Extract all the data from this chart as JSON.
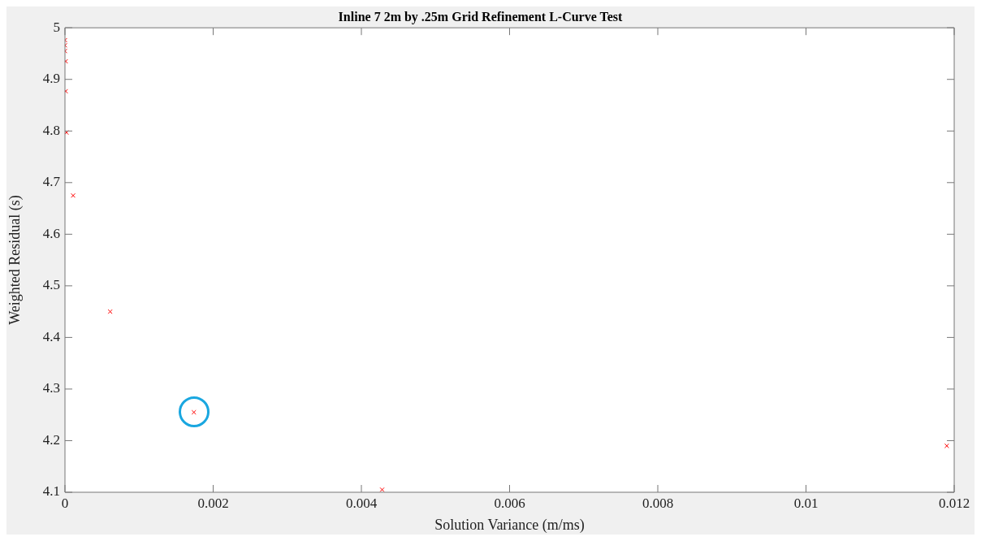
{
  "chart_data": {
    "type": "scatter",
    "title": "Inline 7 2m by .25m Grid Refinement L-Curve Test",
    "xlabel": "Solution Variance (m/ms)",
    "ylabel": "Weighted Residual (s)",
    "series": [
      {
        "color": "#ff0000",
        "x": [
          0,
          0,
          0,
          1e-05,
          1e-05,
          2e-05,
          0.00011,
          0.00061,
          0.00174,
          0.00428,
          0.0119
        ],
        "values": [
          4.976,
          4.966,
          4.955,
          4.935,
          4.877,
          4.797,
          4.675,
          4.45,
          4.255,
          4.105,
          4.19
        ]
      }
    ],
    "xlim": [
      0,
      0.012
    ],
    "xticks": [
      0,
      0.002,
      0.004,
      0.006,
      0.008,
      0.01,
      0.012
    ],
    "ylim": [
      4.1,
      5
    ],
    "yticks": [
      4.1,
      4.2,
      4.3,
      4.4,
      4.5,
      4.6,
      4.7,
      4.8,
      4.9,
      5
    ],
    "marker": "cross",
    "grid": false,
    "legend": false
  }
}
